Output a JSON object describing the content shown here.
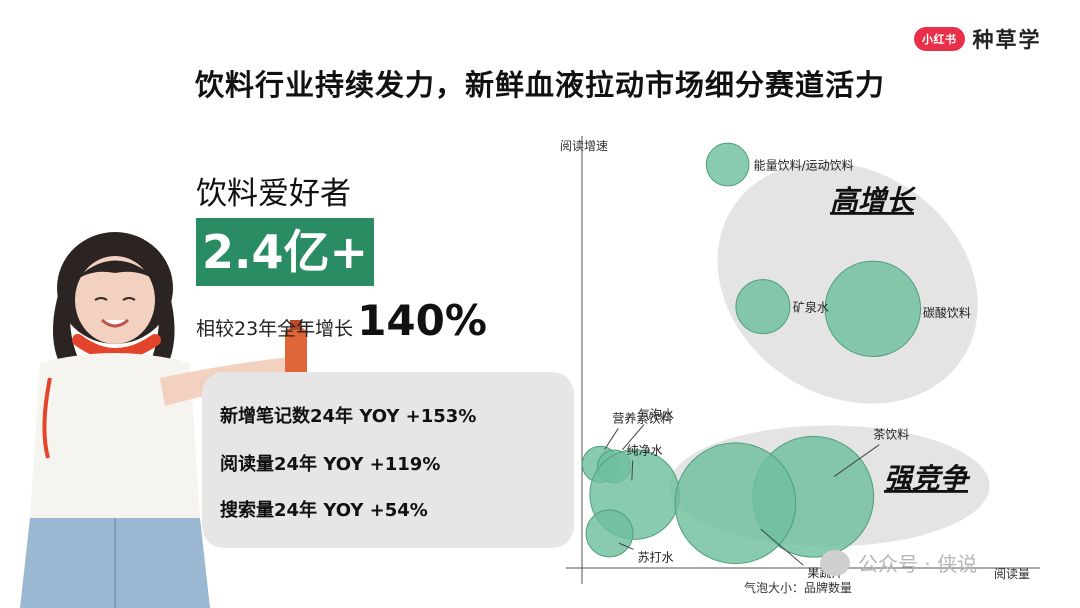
{
  "brand": {
    "badge": "小红书",
    "name": "种草学"
  },
  "title": "饮料行业持续发力，新鲜血液拉动市场细分赛道活力",
  "headline": {
    "subject": "饮料爱好者",
    "big_number": "2.4亿+",
    "growth_label": "相较23年全年增长",
    "growth_value": "140%"
  },
  "stats": [
    {
      "label": "新增笔记数24年 YOY  +153%"
    },
    {
      "label": "阅读量24年 YOY  +119%"
    },
    {
      "label": "搜索量24年 YOY  +54%"
    }
  ],
  "watermark": "公众号 · 侠说",
  "colors": {
    "accent": "#2a8c63",
    "bubble": "#6fbf9d",
    "bubble_stroke": "#4f9e7d",
    "cluster": "#e4e4e4"
  },
  "chart_data": {
    "type": "scatter",
    "xlabel": "阅读量",
    "ylabel": "阅读增速",
    "size_note": "气泡大小：品牌数量",
    "xlim": [
      0,
      100
    ],
    "ylim": [
      0,
      100
    ],
    "grid": false,
    "legend": "none",
    "groups": [
      {
        "label": "高增长",
        "cx": 58,
        "cy": 66,
        "rx": 30,
        "ry": 26
      },
      {
        "label": "强竞争",
        "cx": 54,
        "cy": 19,
        "rx": 35,
        "ry": 14
      }
    ],
    "points": [
      {
        "name": "能量饮料/运动饮料",
        "x": 31.8,
        "y": 93.4,
        "size": 2.5
      },
      {
        "name": "矿泉水",
        "x": 39.5,
        "y": 60.5,
        "size": 4.0
      },
      {
        "name": "碳酸饮料",
        "x": 63.5,
        "y": 60.0,
        "size": 12.5
      },
      {
        "name": "营养素饮料",
        "x": 4.0,
        "y": 24.0,
        "size": 1.8
      },
      {
        "name": "气泡水",
        "x": 7.0,
        "y": 23.5,
        "size": 1.5
      },
      {
        "name": "纯净水",
        "x": 11.5,
        "y": 17.0,
        "size": 11.0
      },
      {
        "name": "苏打水",
        "x": 6.0,
        "y": 8.0,
        "size": 3.0
      },
      {
        "name": "茶饮料",
        "x": 50.5,
        "y": 16.5,
        "size": 20.0
      },
      {
        "name": "果蔬汁",
        "x": 33.5,
        "y": 15.0,
        "size": 20.0
      }
    ]
  }
}
